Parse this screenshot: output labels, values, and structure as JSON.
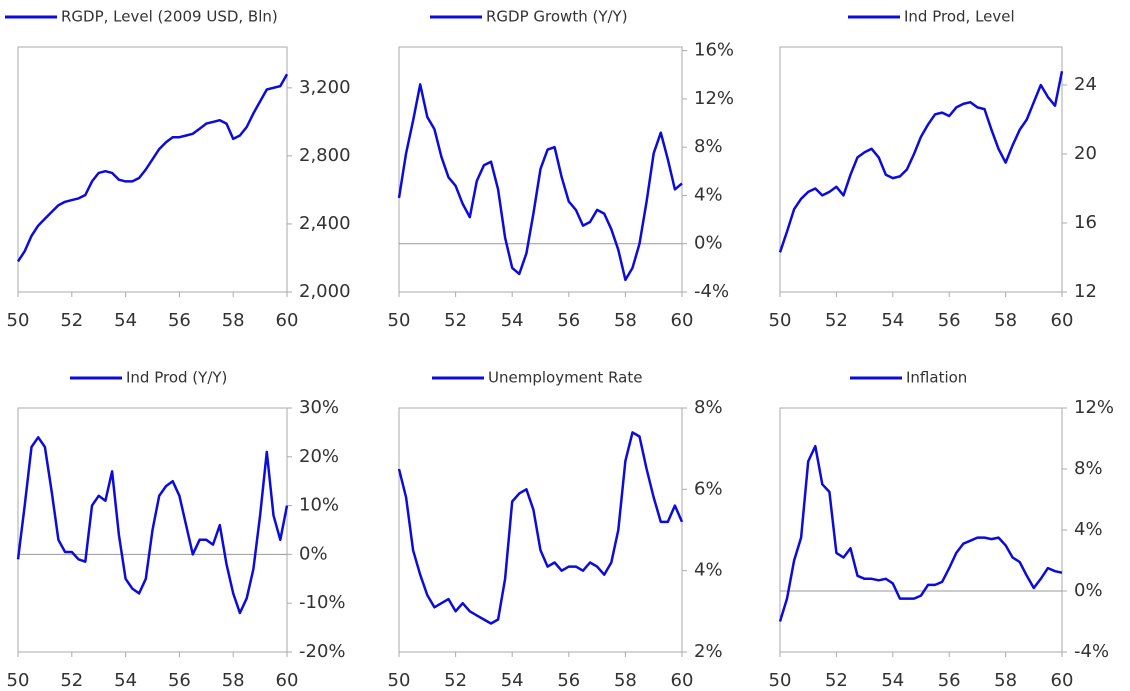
{
  "chart_data": [
    {
      "type": "line",
      "xlim": [
        50,
        60
      ],
      "xticks": [
        50,
        52,
        54,
        56,
        58,
        60
      ],
      "ylim": [
        2000,
        3440
      ],
      "yticks": [
        {
          "value": 2000,
          "label": "2,000"
        },
        {
          "value": 2400,
          "label": "2,400"
        },
        {
          "value": 2800,
          "label": "2,800"
        },
        {
          "value": 3200,
          "label": "3,200"
        }
      ],
      "x": [
        50,
        50.25,
        50.5,
        50.75,
        51,
        51.25,
        51.5,
        51.75,
        52,
        52.25,
        52.5,
        52.75,
        53,
        53.25,
        53.5,
        53.75,
        54,
        54.25,
        54.5,
        54.75,
        55,
        55.25,
        55.5,
        55.75,
        56,
        56.25,
        56.5,
        56.75,
        57,
        57.25,
        57.5,
        57.75,
        58,
        58.25,
        58.5,
        58.75,
        59,
        59.25,
        59.5,
        59.75,
        60
      ],
      "series": [
        {
          "name": "RGDP, Level (2009 USD, Bln)",
          "color": "#0b0bdc",
          "values": [
            2180,
            2240,
            2330,
            2390,
            2430,
            2470,
            2510,
            2530,
            2540,
            2550,
            2570,
            2650,
            2700,
            2710,
            2700,
            2660,
            2650,
            2650,
            2670,
            2720,
            2780,
            2840,
            2880,
            2910,
            2910,
            2920,
            2930,
            2960,
            2990,
            3000,
            3010,
            2990,
            2900,
            2920,
            2970,
            3050,
            3120,
            3190,
            3200,
            3210,
            3280
          ]
        }
      ]
    },
    {
      "type": "line",
      "xlim": [
        50,
        60
      ],
      "xticks": [
        50,
        52,
        54,
        56,
        58,
        60
      ],
      "ylim": [
        -4,
        16.3
      ],
      "yticks": [
        {
          "value": -4,
          "label": "-4%"
        },
        {
          "value": 0,
          "label": "0%"
        },
        {
          "value": 4,
          "label": "4%"
        },
        {
          "value": 8,
          "label": "8%"
        },
        {
          "value": 12,
          "label": "12%"
        },
        {
          "value": 16,
          "label": "16%"
        }
      ],
      "x": [
        50,
        50.25,
        50.5,
        50.75,
        51,
        51.25,
        51.5,
        51.75,
        52,
        52.25,
        52.5,
        52.75,
        53,
        53.25,
        53.5,
        53.75,
        54,
        54.25,
        54.5,
        54.75,
        55,
        55.25,
        55.5,
        55.75,
        56,
        56.25,
        56.5,
        56.75,
        57,
        57.25,
        57.5,
        57.75,
        58,
        58.25,
        58.5,
        58.75,
        59,
        59.25,
        59.5,
        59.75,
        60
      ],
      "series": [
        {
          "name": "RGDP Growth (Y/Y)",
          "color": "#0b0bdc",
          "values": [
            3.8,
            7.5,
            10.2,
            13.2,
            10.5,
            9.5,
            7.2,
            5.5,
            4.8,
            3.3,
            2.2,
            5.2,
            6.5,
            6.8,
            4.5,
            0.5,
            -2,
            -2.5,
            -0.8,
            2.5,
            6.2,
            7.8,
            8,
            5.5,
            3.5,
            2.8,
            1.5,
            1.8,
            2.8,
            2.5,
            1.2,
            -0.5,
            -3,
            -2,
            0,
            3.5,
            7.5,
            9.2,
            7,
            4.5,
            5
          ]
        }
      ]
    },
    {
      "type": "line",
      "xlim": [
        50,
        60
      ],
      "xticks": [
        50,
        52,
        54,
        56,
        58,
        60
      ],
      "ylim": [
        12,
        26.2
      ],
      "yticks": [
        12,
        16,
        20,
        24
      ],
      "x": [
        50,
        50.25,
        50.5,
        50.75,
        51,
        51.25,
        51.5,
        51.75,
        52,
        52.25,
        52.5,
        52.75,
        53,
        53.25,
        53.5,
        53.75,
        54,
        54.25,
        54.5,
        54.75,
        55,
        55.25,
        55.5,
        55.75,
        56,
        56.25,
        56.5,
        56.75,
        57,
        57.25,
        57.5,
        57.75,
        58,
        58.25,
        58.5,
        58.75,
        59,
        59.25,
        59.5,
        59.75,
        60
      ],
      "series": [
        {
          "name": "Ind Prod, Level",
          "color": "#0b0bdc",
          "values": [
            14.3,
            15.5,
            16.8,
            17.4,
            17.8,
            18,
            17.6,
            17.8,
            18.1,
            17.6,
            18.8,
            19.8,
            20.1,
            20.3,
            19.8,
            18.8,
            18.6,
            18.7,
            19.1,
            20,
            21,
            21.7,
            22.3,
            22.4,
            22.2,
            22.7,
            22.9,
            23,
            22.7,
            22.6,
            21.4,
            20.3,
            19.5,
            20.5,
            21.4,
            22,
            23,
            24,
            23.3,
            22.8,
            24.8
          ]
        }
      ]
    },
    {
      "type": "line",
      "xlim": [
        50,
        60
      ],
      "xticks": [
        50,
        52,
        54,
        56,
        58,
        60
      ],
      "ylim": [
        -20,
        30
      ],
      "yticks": [
        {
          "value": -20,
          "label": "-20%"
        },
        {
          "value": -10,
          "label": "-10%"
        },
        {
          "value": 0,
          "label": "0%"
        },
        {
          "value": 10,
          "label": "10%"
        },
        {
          "value": 20,
          "label": "20%"
        },
        {
          "value": 30,
          "label": "30%"
        }
      ],
      "x": [
        50,
        50.25,
        50.5,
        50.75,
        51,
        51.25,
        51.5,
        51.75,
        52,
        52.25,
        52.5,
        52.75,
        53,
        53.25,
        53.5,
        53.75,
        54,
        54.25,
        54.5,
        54.75,
        55,
        55.25,
        55.5,
        55.75,
        56,
        56.25,
        56.5,
        56.75,
        57,
        57.25,
        57.5,
        57.75,
        58,
        58.25,
        58.5,
        58.75,
        59,
        59.25,
        59.5,
        59.75,
        60
      ],
      "series": [
        {
          "name": "Ind Prod (Y/Y)",
          "color": "#0b0bdc",
          "values": [
            -1,
            10,
            22,
            24,
            22,
            13,
            3,
            0.5,
            0.5,
            -1,
            -1.5,
            10,
            12,
            11,
            17,
            4,
            -5,
            -7,
            -8,
            -5,
            5,
            12,
            14,
            15,
            12,
            6,
            0,
            3,
            3,
            2,
            6,
            -2,
            -8,
            -12,
            -9,
            -3,
            8,
            21,
            8,
            3,
            10
          ]
        }
      ]
    },
    {
      "type": "line",
      "xlim": [
        50,
        60
      ],
      "xticks": [
        50,
        52,
        54,
        56,
        58,
        60
      ],
      "ylim": [
        2,
        8
      ],
      "yticks": [
        {
          "value": 2,
          "label": "2%"
        },
        {
          "value": 4,
          "label": "4%"
        },
        {
          "value": 6,
          "label": "6%"
        },
        {
          "value": 8,
          "label": "8%"
        }
      ],
      "x": [
        50,
        50.25,
        50.5,
        50.75,
        51,
        51.25,
        51.5,
        51.75,
        52,
        52.25,
        52.5,
        52.75,
        53,
        53.25,
        53.5,
        53.75,
        54,
        54.25,
        54.5,
        54.75,
        55,
        55.25,
        55.5,
        55.75,
        56,
        56.25,
        56.5,
        56.75,
        57,
        57.25,
        57.5,
        57.75,
        58,
        58.25,
        58.5,
        58.75,
        59,
        59.25,
        59.5,
        59.75,
        60
      ],
      "series": [
        {
          "name": "Unemployment Rate",
          "color": "#0b0bdc",
          "values": [
            6.5,
            5.8,
            4.5,
            3.9,
            3.4,
            3.1,
            3.2,
            3.3,
            3.0,
            3.2,
            3.0,
            2.9,
            2.8,
            2.7,
            2.8,
            3.8,
            5.7,
            5.9,
            6,
            5.5,
            4.5,
            4.1,
            4.2,
            4.0,
            4.1,
            4.1,
            4.0,
            4.2,
            4.1,
            3.9,
            4.2,
            5.0,
            6.7,
            7.4,
            7.3,
            6.5,
            5.8,
            5.2,
            5.2,
            5.6,
            5.2
          ]
        }
      ]
    },
    {
      "type": "line",
      "xlim": [
        50,
        60
      ],
      "xticks": [
        50,
        52,
        54,
        56,
        58,
        60
      ],
      "ylim": [
        -4,
        12
      ],
      "yticks": [
        {
          "value": -4,
          "label": "-4%"
        },
        {
          "value": 0,
          "label": "0%"
        },
        {
          "value": 4,
          "label": "4%"
        },
        {
          "value": 8,
          "label": "8%"
        },
        {
          "value": 12,
          "label": "12%"
        }
      ],
      "x": [
        50,
        50.25,
        50.5,
        50.75,
        51,
        51.25,
        51.5,
        51.75,
        52,
        52.25,
        52.5,
        52.75,
        53,
        53.25,
        53.5,
        53.75,
        54,
        54.25,
        54.5,
        54.75,
        55,
        55.25,
        55.5,
        55.75,
        56,
        56.25,
        56.5,
        56.75,
        57,
        57.25,
        57.5,
        57.75,
        58,
        58.25,
        58.5,
        58.75,
        59,
        59.25,
        59.5,
        59.75,
        60
      ],
      "series": [
        {
          "name": "Inflation",
          "color": "#0b0bdc",
          "values": [
            -2,
            -0.5,
            2,
            3.5,
            8.5,
            9.5,
            7,
            6.5,
            2.5,
            2.2,
            2.8,
            1,
            0.8,
            0.8,
            0.7,
            0.8,
            0.5,
            -0.5,
            -0.5,
            -0.5,
            -0.3,
            0.4,
            0.4,
            0.6,
            1.5,
            2.5,
            3.1,
            3.3,
            3.5,
            3.5,
            3.4,
            3.5,
            3.0,
            2.2,
            1.9,
            1.0,
            0.2,
            0.8,
            1.5,
            1.3,
            1.2
          ]
        }
      ]
    }
  ]
}
